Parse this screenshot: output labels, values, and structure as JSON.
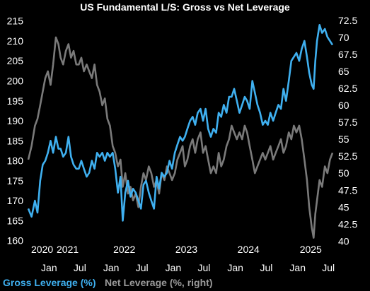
{
  "chart_data": {
    "type": "line",
    "title": "US Fundamental L/S: Gross vs Net Leverage",
    "legend_placement": "bottom",
    "grid": false,
    "x_range": [
      "2020-09-01",
      "2025-07-25"
    ],
    "year_labels": [
      "2020",
      "2021",
      "2022",
      "2023",
      "2024",
      "2025"
    ],
    "month_ticks": [
      {
        "label": "Jan",
        "date": "2021-01-01"
      },
      {
        "label": "Jul",
        "date": "2021-07-01"
      },
      {
        "label": "Jan",
        "date": "2022-01-01"
      },
      {
        "label": "Jul",
        "date": "2022-07-01"
      },
      {
        "label": "Jan",
        "date": "2023-01-01"
      },
      {
        "label": "Jul",
        "date": "2023-07-01"
      },
      {
        "label": "Jan",
        "date": "2024-01-01"
      },
      {
        "label": "Jul",
        "date": "2024-07-01"
      },
      {
        "label": "Jan",
        "date": "2025-01-01"
      },
      {
        "label": "Jul",
        "date": "2025-07-01"
      }
    ],
    "y_left": {
      "lim": [
        158,
        216
      ],
      "ticks": [
        "160",
        "165",
        "170",
        "175",
        "180",
        "185",
        "190",
        "195",
        "200",
        "205",
        "210",
        "215"
      ]
    },
    "y_right": {
      "lim": [
        38.9,
        73
      ],
      "ticks": [
        "40",
        "42.5",
        "45",
        "47.5",
        "50",
        "52.5",
        "55",
        "57.5",
        "60",
        "62.5",
        "65",
        "67.5",
        "70",
        "72.5"
      ]
    },
    "series": [
      {
        "name": "Gross Leverage (%)",
        "axis": "left",
        "color": "#3fb0f0",
        "points": [
          [
            "2020-09-01",
            168
          ],
          [
            "2020-09-20",
            166
          ],
          [
            "2020-10-10",
            170
          ],
          [
            "2020-10-25",
            167
          ],
          [
            "2020-11-10",
            175
          ],
          [
            "2020-11-25",
            179
          ],
          [
            "2020-12-10",
            180
          ],
          [
            "2020-12-25",
            182
          ],
          [
            "2021-01-10",
            185
          ],
          [
            "2021-01-25",
            182
          ],
          [
            "2021-02-10",
            186
          ],
          [
            "2021-02-25",
            183
          ],
          [
            "2021-03-10",
            183
          ],
          [
            "2021-03-25",
            181
          ],
          [
            "2021-04-10",
            182
          ],
          [
            "2021-04-25",
            186
          ],
          [
            "2021-05-10",
            181
          ],
          [
            "2021-05-25",
            179
          ],
          [
            "2021-06-10",
            178
          ],
          [
            "2021-06-25",
            178
          ],
          [
            "2021-07-10",
            180
          ],
          [
            "2021-07-25",
            178
          ],
          [
            "2021-08-10",
            176
          ],
          [
            "2021-08-25",
            177
          ],
          [
            "2021-09-10",
            180
          ],
          [
            "2021-09-25",
            178
          ],
          [
            "2021-10-10",
            182
          ],
          [
            "2021-10-25",
            181
          ],
          [
            "2021-11-10",
            182
          ],
          [
            "2021-11-25",
            180
          ],
          [
            "2021-12-10",
            182
          ],
          [
            "2021-12-25",
            181
          ],
          [
            "2022-01-10",
            182
          ],
          [
            "2022-01-25",
            178
          ],
          [
            "2022-02-10",
            172
          ],
          [
            "2022-02-25",
            176
          ],
          [
            "2022-03-10",
            165
          ],
          [
            "2022-03-25",
            172
          ],
          [
            "2022-04-10",
            175
          ],
          [
            "2022-04-25",
            171
          ],
          [
            "2022-05-10",
            173
          ],
          [
            "2022-05-25",
            172
          ],
          [
            "2022-06-10",
            170
          ],
          [
            "2022-06-25",
            168
          ],
          [
            "2022-07-10",
            174
          ],
          [
            "2022-07-25",
            175
          ],
          [
            "2022-08-10",
            172
          ],
          [
            "2022-08-25",
            170
          ],
          [
            "2022-09-10",
            168
          ],
          [
            "2022-09-25",
            176
          ],
          [
            "2022-10-10",
            173
          ],
          [
            "2022-10-25",
            177
          ],
          [
            "2022-11-10",
            176
          ],
          [
            "2022-11-25",
            177
          ],
          [
            "2022-12-10",
            180
          ],
          [
            "2022-12-25",
            178
          ],
          [
            "2023-01-10",
            182
          ],
          [
            "2023-01-25",
            184
          ],
          [
            "2023-02-10",
            186
          ],
          [
            "2023-02-25",
            185
          ],
          [
            "2023-03-10",
            186
          ],
          [
            "2023-03-25",
            188
          ],
          [
            "2023-04-10",
            190
          ],
          [
            "2023-04-25",
            191
          ],
          [
            "2023-05-10",
            189
          ],
          [
            "2023-05-25",
            192
          ],
          [
            "2023-06-10",
            193
          ],
          [
            "2023-06-25",
            190
          ],
          [
            "2023-07-10",
            193
          ],
          [
            "2023-07-25",
            188
          ],
          [
            "2023-08-10",
            186
          ],
          [
            "2023-08-25",
            188
          ],
          [
            "2023-09-10",
            187
          ],
          [
            "2023-09-25",
            192
          ],
          [
            "2023-10-10",
            191
          ],
          [
            "2023-10-25",
            194
          ],
          [
            "2023-11-10",
            192
          ],
          [
            "2023-11-25",
            196
          ],
          [
            "2023-12-10",
            196
          ],
          [
            "2023-12-25",
            198
          ],
          [
            "2024-01-10",
            195
          ],
          [
            "2024-01-25",
            192
          ],
          [
            "2024-02-10",
            194
          ],
          [
            "2024-02-25",
            196
          ],
          [
            "2024-03-10",
            195
          ],
          [
            "2024-03-25",
            193
          ],
          [
            "2024-04-10",
            200
          ],
          [
            "2024-04-25",
            197
          ],
          [
            "2024-05-10",
            194
          ],
          [
            "2024-05-25",
            192
          ],
          [
            "2024-06-10",
            189
          ],
          [
            "2024-06-25",
            190
          ],
          [
            "2024-07-10",
            189
          ],
          [
            "2024-07-25",
            192
          ],
          [
            "2024-08-10",
            190
          ],
          [
            "2024-08-25",
            192
          ],
          [
            "2024-09-10",
            194
          ],
          [
            "2024-09-25",
            193
          ],
          [
            "2024-10-10",
            198
          ],
          [
            "2024-10-25",
            195
          ],
          [
            "2024-11-10",
            200
          ],
          [
            "2024-11-25",
            205
          ],
          [
            "2024-12-10",
            206
          ],
          [
            "2024-12-25",
            207
          ],
          [
            "2025-01-10",
            205
          ],
          [
            "2025-01-25",
            208
          ],
          [
            "2025-02-10",
            210
          ],
          [
            "2025-02-25",
            206
          ],
          [
            "2025-03-10",
            202
          ],
          [
            "2025-03-25",
            199
          ],
          [
            "2025-04-05",
            198
          ],
          [
            "2025-04-15",
            205
          ],
          [
            "2025-04-25",
            210
          ],
          [
            "2025-05-10",
            214
          ],
          [
            "2025-05-25",
            212
          ],
          [
            "2025-06-10",
            213
          ],
          [
            "2025-06-25",
            211
          ],
          [
            "2025-07-10",
            210
          ],
          [
            "2025-07-25",
            209
          ]
        ]
      },
      {
        "name": "Net Leverage (%, right)",
        "axis": "right",
        "color": "#7a7a7a",
        "points": [
          [
            "2020-09-01",
            52
          ],
          [
            "2020-09-20",
            54
          ],
          [
            "2020-10-10",
            57
          ],
          [
            "2020-10-25",
            58
          ],
          [
            "2020-11-10",
            60
          ],
          [
            "2020-11-25",
            62
          ],
          [
            "2020-12-10",
            64
          ],
          [
            "2020-12-25",
            65
          ],
          [
            "2021-01-10",
            63
          ],
          [
            "2021-01-25",
            66
          ],
          [
            "2021-02-10",
            70
          ],
          [
            "2021-02-25",
            69
          ],
          [
            "2021-03-10",
            67
          ],
          [
            "2021-03-25",
            66
          ],
          [
            "2021-04-10",
            68
          ],
          [
            "2021-04-25",
            69
          ],
          [
            "2021-05-10",
            67
          ],
          [
            "2021-05-25",
            68
          ],
          [
            "2021-06-10",
            66
          ],
          [
            "2021-06-25",
            66
          ],
          [
            "2021-07-10",
            67
          ],
          [
            "2021-07-25",
            65
          ],
          [
            "2021-08-10",
            66
          ],
          [
            "2021-08-25",
            65
          ],
          [
            "2021-09-10",
            64
          ],
          [
            "2021-09-25",
            66
          ],
          [
            "2021-10-10",
            63
          ],
          [
            "2021-10-25",
            62
          ],
          [
            "2021-11-10",
            60
          ],
          [
            "2021-11-25",
            61
          ],
          [
            "2021-12-10",
            58
          ],
          [
            "2021-12-25",
            57
          ],
          [
            "2022-01-10",
            54
          ],
          [
            "2022-01-25",
            53
          ],
          [
            "2022-02-10",
            51
          ],
          [
            "2022-02-25",
            52
          ],
          [
            "2022-03-10",
            48
          ],
          [
            "2022-03-25",
            50
          ],
          [
            "2022-04-10",
            47
          ],
          [
            "2022-04-25",
            48
          ],
          [
            "2022-05-10",
            46
          ],
          [
            "2022-05-25",
            47
          ],
          [
            "2022-06-10",
            45
          ],
          [
            "2022-06-25",
            48
          ],
          [
            "2022-07-10",
            50
          ],
          [
            "2022-07-25",
            49
          ],
          [
            "2022-08-10",
            51
          ],
          [
            "2022-08-25",
            50
          ],
          [
            "2022-09-10",
            48
          ],
          [
            "2022-09-25",
            49
          ],
          [
            "2022-10-10",
            47
          ],
          [
            "2022-10-25",
            50
          ],
          [
            "2022-11-10",
            49
          ],
          [
            "2022-11-25",
            51
          ],
          [
            "2022-12-10",
            50
          ],
          [
            "2022-12-25",
            49
          ],
          [
            "2023-01-10",
            50
          ],
          [
            "2023-01-25",
            52
          ],
          [
            "2023-02-10",
            53
          ],
          [
            "2023-02-25",
            54
          ],
          [
            "2023-03-10",
            51
          ],
          [
            "2023-03-25",
            52
          ],
          [
            "2023-04-10",
            54
          ],
          [
            "2023-04-25",
            55
          ],
          [
            "2023-05-10",
            53
          ],
          [
            "2023-05-25",
            55
          ],
          [
            "2023-06-10",
            56
          ],
          [
            "2023-06-25",
            53
          ],
          [
            "2023-07-10",
            54
          ],
          [
            "2023-07-25",
            52
          ],
          [
            "2023-08-10",
            50
          ],
          [
            "2023-08-25",
            51
          ],
          [
            "2023-09-10",
            50
          ],
          [
            "2023-09-25",
            53
          ],
          [
            "2023-10-10",
            51
          ],
          [
            "2023-10-25",
            52
          ],
          [
            "2023-11-10",
            54
          ],
          [
            "2023-11-25",
            55
          ],
          [
            "2023-12-10",
            57
          ],
          [
            "2023-12-25",
            56
          ],
          [
            "2024-01-10",
            55
          ],
          [
            "2024-01-25",
            56
          ],
          [
            "2024-02-10",
            55
          ],
          [
            "2024-02-25",
            57
          ],
          [
            "2024-03-10",
            56
          ],
          [
            "2024-03-25",
            54
          ],
          [
            "2024-04-10",
            52
          ],
          [
            "2024-04-25",
            50
          ],
          [
            "2024-05-10",
            51
          ],
          [
            "2024-05-25",
            52
          ],
          [
            "2024-06-10",
            53
          ],
          [
            "2024-06-25",
            52
          ],
          [
            "2024-07-10",
            53
          ],
          [
            "2024-07-25",
            54
          ],
          [
            "2024-08-10",
            52
          ],
          [
            "2024-08-25",
            53
          ],
          [
            "2024-09-10",
            54
          ],
          [
            "2024-09-25",
            55
          ],
          [
            "2024-10-10",
            53
          ],
          [
            "2024-10-25",
            54
          ],
          [
            "2024-11-10",
            56
          ],
          [
            "2024-11-25",
            55
          ],
          [
            "2024-12-10",
            57
          ],
          [
            "2024-12-25",
            56
          ],
          [
            "2025-01-10",
            57
          ],
          [
            "2025-01-25",
            55
          ],
          [
            "2025-02-10",
            52
          ],
          [
            "2025-02-25",
            49
          ],
          [
            "2025-03-10",
            45
          ],
          [
            "2025-03-25",
            42
          ],
          [
            "2025-04-05",
            40.5
          ],
          [
            "2025-04-15",
            44
          ],
          [
            "2025-04-25",
            46
          ],
          [
            "2025-05-10",
            49
          ],
          [
            "2025-05-25",
            48
          ],
          [
            "2025-06-10",
            51
          ],
          [
            "2025-06-25",
            50
          ],
          [
            "2025-07-10",
            52
          ],
          [
            "2025-07-25",
            53
          ]
        ]
      }
    ]
  }
}
